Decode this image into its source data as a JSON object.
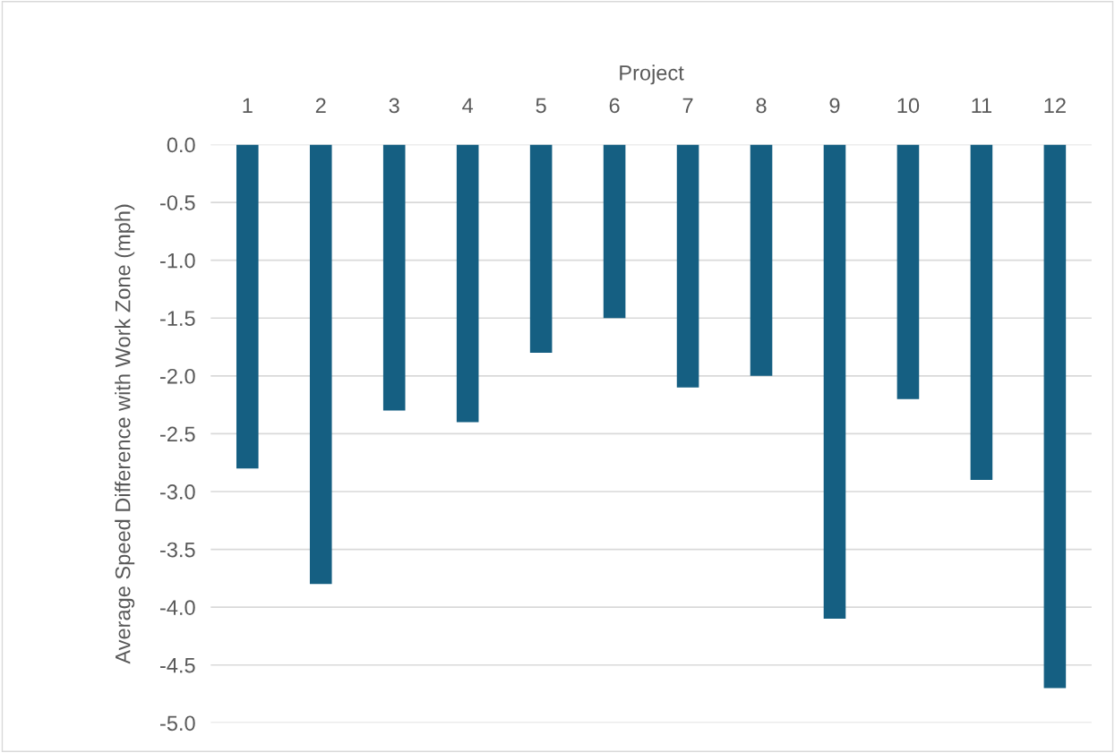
{
  "chart_data": {
    "type": "bar",
    "xlabel": "Project",
    "ylabel": "Average Speed Difference with Work Zone (mph)",
    "categories": [
      "1",
      "2",
      "3",
      "4",
      "5",
      "6",
      "7",
      "8",
      "9",
      "10",
      "11",
      "12"
    ],
    "series": [
      {
        "color": "#155f82",
        "values": [
          -2.8,
          -3.8,
          -2.3,
          -2.4,
          -1.8,
          -1.5,
          -2.1,
          -2.0,
          -4.1,
          -2.2,
          -2.9,
          -4.7
        ]
      }
    ],
    "ylim": [
      -5.0,
      0.0
    ],
    "yticks": [
      {
        "value": 0,
        "label": "0.0"
      },
      {
        "value": -0.5,
        "label": "-0.5"
      },
      {
        "value": -1.0,
        "label": "-1.0"
      },
      {
        "value": -1.5,
        "label": "-1.5"
      },
      {
        "value": -2.0,
        "label": "-2.0"
      },
      {
        "value": -2.5,
        "label": "-2.5"
      },
      {
        "value": -3.0,
        "label": "-3.0"
      },
      {
        "value": -3.5,
        "label": "-3.5"
      },
      {
        "value": -4.0,
        "label": "-4.0"
      },
      {
        "value": -4.5,
        "label": "-4.5"
      },
      {
        "value": -5.0,
        "label": "-5.0"
      }
    ],
    "grid": "y"
  }
}
